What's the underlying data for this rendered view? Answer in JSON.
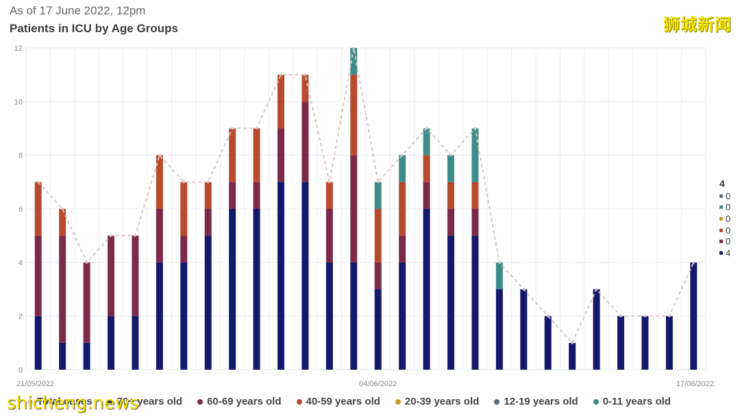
{
  "header": {
    "subtitle": "As of 17 June 2022, 12pm",
    "title": "Patients in ICU by Age Groups",
    "brand": "狮城新闻"
  },
  "watermark": "shicheng.news",
  "colors": {
    "70+": "#14196b",
    "60-69": "#7d2a4a",
    "40-59": "#b84a2d",
    "20-39": "#c79a2e",
    "12-19": "#5b6b78",
    "0-11": "#3d8c8c",
    "total_line": "#d9c4c4",
    "grid": "#ececf2"
  },
  "legend": [
    {
      "label": "Total cases",
      "color": "#d9c4c4"
    },
    {
      "label": "70+ years old",
      "color": "#14196b"
    },
    {
      "label": "60-69 years old",
      "color": "#7d2a4a"
    },
    {
      "label": "40-59 years old",
      "color": "#b84a2d"
    },
    {
      "label": "20-39 years old",
      "color": "#c79a2e"
    },
    {
      "label": "12-19 years old",
      "color": "#5b6b78"
    },
    {
      "label": "0-11 years old",
      "color": "#3d8c8c"
    }
  ],
  "side_legend": {
    "header": "4",
    "rows": [
      {
        "value": "0",
        "color": "#5b6b78"
      },
      {
        "value": "0",
        "color": "#3d8c8c"
      },
      {
        "value": "0",
        "color": "#c79a2e"
      },
      {
        "value": "0",
        "color": "#b84a2d"
      },
      {
        "value": "0",
        "color": "#7d2a4a"
      },
      {
        "value": "4",
        "color": "#14196b"
      }
    ]
  },
  "chart_data": {
    "type": "bar",
    "stacked": true,
    "ylim": [
      0,
      12
    ],
    "yticks": [
      0,
      2,
      4,
      6,
      8,
      10,
      12
    ],
    "grid": true,
    "legend_position": "bottom",
    "x_tick_labels": [
      {
        "index": 0,
        "label": "21/05/2022"
      },
      {
        "index": 14,
        "label": "04/06/2022"
      },
      {
        "index": 27,
        "label": "17/06/2022"
      }
    ],
    "categories": [
      "21/05/2022",
      "22/05/2022",
      "23/05/2022",
      "24/05/2022",
      "25/05/2022",
      "26/05/2022",
      "27/05/2022",
      "28/05/2022",
      "29/05/2022",
      "30/05/2022",
      "31/05/2022",
      "01/06/2022",
      "02/06/2022",
      "03/06/2022",
      "04/06/2022",
      "05/06/2022",
      "06/06/2022",
      "07/06/2022",
      "08/06/2022",
      "09/06/2022",
      "10/06/2022",
      "11/06/2022",
      "12/06/2022",
      "13/06/2022",
      "14/06/2022",
      "15/06/2022",
      "16/06/2022",
      "17/06/2022"
    ],
    "series": [
      {
        "name": "70+ years old",
        "key": "70+",
        "values": [
          2,
          1,
          1,
          2,
          2,
          4,
          4,
          5,
          6,
          6,
          7,
          7,
          4,
          4,
          3,
          4,
          6,
          5,
          5,
          3,
          3,
          2,
          1,
          3,
          2,
          2,
          2,
          4
        ]
      },
      {
        "name": "60-69 years old",
        "key": "60-69",
        "values": [
          3,
          4,
          3,
          3,
          3,
          2,
          1,
          1,
          1,
          1,
          2,
          3,
          2,
          4,
          1,
          1,
          1,
          1,
          1,
          0,
          0,
          0,
          0,
          0,
          0,
          0,
          0,
          0
        ]
      },
      {
        "name": "40-59 years old",
        "key": "40-59",
        "values": [
          2,
          1,
          0,
          0,
          0,
          2,
          2,
          1,
          2,
          2,
          2,
          1,
          1,
          3,
          2,
          2,
          1,
          1,
          1,
          0,
          0,
          0,
          0,
          0,
          0,
          0,
          0,
          0
        ]
      },
      {
        "name": "20-39 years old",
        "key": "20-39",
        "values": [
          0,
          0,
          0,
          0,
          0,
          0,
          0,
          0,
          0,
          0,
          0,
          0,
          0,
          0,
          0,
          0,
          0,
          0,
          0,
          0,
          0,
          0,
          0,
          0,
          0,
          0,
          0,
          0
        ]
      },
      {
        "name": "12-19 years old",
        "key": "12-19",
        "values": [
          0,
          0,
          0,
          0,
          0,
          0,
          0,
          0,
          0,
          0,
          0,
          0,
          0,
          0,
          0,
          0,
          0,
          0,
          0,
          0,
          0,
          0,
          0,
          0,
          0,
          0,
          0,
          0
        ]
      },
      {
        "name": "0-11 years old",
        "key": "0-11",
        "values": [
          0,
          0,
          0,
          0,
          0,
          0,
          0,
          0,
          0,
          0,
          0,
          0,
          0,
          1,
          1,
          1,
          1,
          1,
          2,
          1,
          0,
          0,
          0,
          0,
          0,
          0,
          0,
          0
        ]
      }
    ],
    "total_cases": [
      7,
      6,
      4,
      5,
      5,
      8,
      7,
      7,
      9,
      9,
      11,
      11,
      7,
      12,
      7,
      8,
      9,
      8,
      9,
      4,
      3,
      2,
      1,
      3,
      2,
      2,
      2,
      4
    ]
  }
}
